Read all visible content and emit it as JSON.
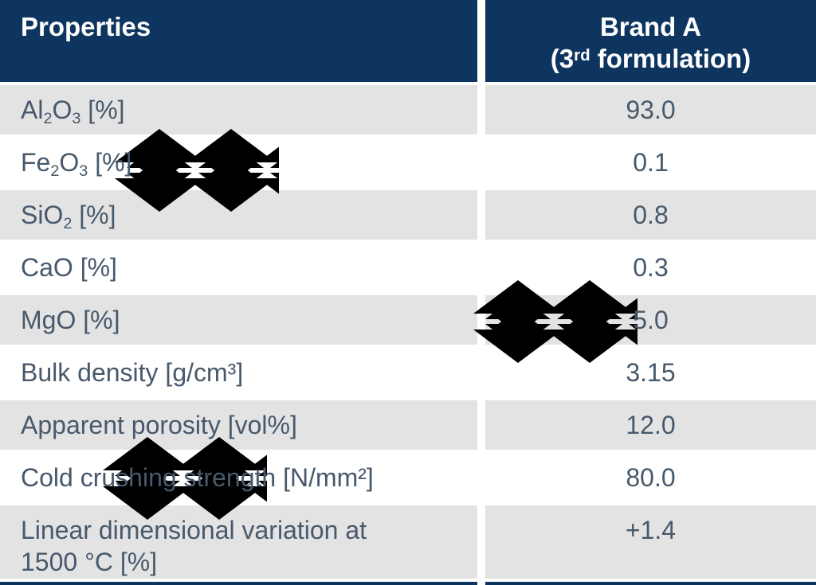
{
  "header": {
    "properties": "Properties",
    "brand_html": "Brand A<br>(3<sup>rd</sup> formulation)",
    "brand_plain": "Brand A (3rd formulation)"
  },
  "table": {
    "rows": [
      {
        "property_html": "Al<sub>2</sub>O<sub>3</sub> [%]",
        "property_plain": "Al2O3 [%]",
        "value": "93.0"
      },
      {
        "property_html": "Fe<sub>2</sub>O<sub>3</sub> [%]",
        "property_plain": "Fe2O3 [%]",
        "value": "0.1"
      },
      {
        "property_html": "SiO<sub>2</sub> [%]",
        "property_plain": "SiO2 [%]",
        "value": "0.8"
      },
      {
        "property_html": "CaO [%]",
        "property_plain": "CaO [%]",
        "value": "0.3"
      },
      {
        "property_html": "MgO [%]",
        "property_plain": "MgO [%]",
        "value": "5.0"
      },
      {
        "property_html": "Bulk density [g/cm³]",
        "property_plain": "Bulk density [g/cm³]",
        "value": "3.15"
      },
      {
        "property_html": "Apparent porosity [vol%]",
        "property_plain": "Apparent porosity [vol%]",
        "value": "12.0"
      },
      {
        "property_html": "Cold crushing strength [N/mm²]",
        "property_plain": "Cold crushing strength [N/mm²]",
        "value": "80.0"
      },
      {
        "property_html": "Linear dimensional variation at<br>1500 °C [%]",
        "property_plain": "Linear dimensional variation at 1500 °C [%]",
        "value": "+1.4"
      }
    ]
  },
  "chart_data": {
    "type": "table",
    "title": "",
    "columns": [
      "Properties",
      "Brand A (3rd formulation)"
    ],
    "rows": [
      [
        "Al2O3 [%]",
        "93.0"
      ],
      [
        "Fe2O3 [%]",
        "0.1"
      ],
      [
        "SiO2 [%]",
        "0.8"
      ],
      [
        "CaO [%]",
        "0.3"
      ],
      [
        "MgO [%]",
        "5.0"
      ],
      [
        "Bulk density [g/cm³]",
        "3.15"
      ],
      [
        "Apparent porosity [vol%]",
        "12.0"
      ],
      [
        "Cold crushing strength [N/mm²]",
        "80.0"
      ],
      [
        "Linear dimensional variation at 1500 °C [%]",
        "+1.4"
      ]
    ]
  },
  "colors": {
    "navy": "#0e355f",
    "gray": "#e3e3e3",
    "text": "#47596b",
    "wm": "#efefef",
    "white": "#ffffff"
  }
}
